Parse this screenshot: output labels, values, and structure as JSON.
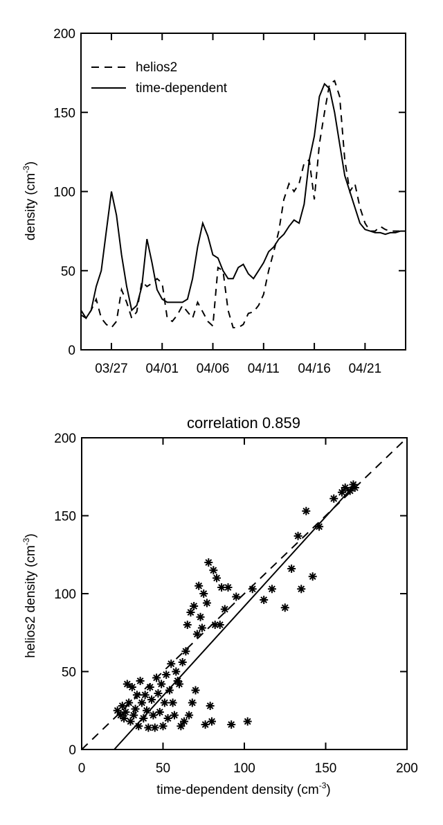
{
  "chart_data": [
    {
      "type": "line",
      "ylabel_main": "density (cm",
      "ylabel_sup": "-3",
      "ylabel_close": ")",
      "ylim": [
        0,
        200
      ],
      "yticks": [
        0,
        50,
        100,
        150,
        200
      ],
      "xlim": [
        0,
        32
      ],
      "xticks": [
        {
          "x": 3,
          "label": "03/27"
        },
        {
          "x": 8,
          "label": "04/01"
        },
        {
          "x": 13,
          "label": "04/06"
        },
        {
          "x": 18,
          "label": "04/11"
        },
        {
          "x": 23,
          "label": "04/16"
        },
        {
          "x": 28,
          "label": "04/21"
        }
      ],
      "legend_position": "top-left",
      "series": [
        {
          "name": "helios2",
          "style": "dashed",
          "x": [
            0,
            0.5,
            1,
            1.5,
            2,
            2.5,
            3,
            3.5,
            4,
            4.5,
            5,
            5.5,
            6,
            6.5,
            7,
            7.5,
            8,
            8.5,
            9,
            9.5,
            10,
            10.5,
            11,
            11.5,
            12,
            12.5,
            13,
            13.5,
            14,
            14.5,
            15,
            15.5,
            16,
            16.5,
            17,
            17.5,
            18,
            18.5,
            19,
            19.5,
            20,
            20.5,
            21,
            21.5,
            22,
            22.5,
            23,
            23.5,
            24,
            24.5,
            25,
            25.5,
            26,
            26.5,
            27,
            27.5,
            28,
            28.5,
            29,
            29.5,
            30,
            30.5,
            31,
            31.5,
            32
          ],
          "y": [
            22,
            20,
            25,
            32,
            20,
            16,
            14,
            18,
            38,
            30,
            20,
            24,
            43,
            40,
            42,
            45,
            42,
            20,
            18,
            22,
            28,
            24,
            20,
            30,
            24,
            18,
            15,
            52,
            50,
            25,
            14,
            14,
            16,
            23,
            24,
            28,
            35,
            50,
            62,
            75,
            95,
            105,
            100,
            105,
            118,
            120,
            95,
            130,
            150,
            168,
            170,
            160,
            120,
            100,
            105,
            90,
            80,
            75,
            75,
            78,
            76,
            75,
            75,
            75,
            75
          ]
        },
        {
          "name": "time-dependent",
          "style": "solid",
          "x": [
            0,
            0.5,
            1,
            1.5,
            2,
            2.5,
            3,
            3.5,
            4,
            4.5,
            5,
            5.5,
            6,
            6.5,
            7,
            7.5,
            8,
            8.5,
            9,
            9.5,
            10,
            10.5,
            11,
            11.5,
            12,
            12.5,
            13,
            13.5,
            14,
            14.5,
            15,
            15.5,
            16,
            16.5,
            17,
            17.5,
            18,
            18.5,
            19,
            19.5,
            20,
            20.5,
            21,
            21.5,
            22,
            22.5,
            23,
            23.5,
            24,
            24.5,
            25,
            25.5,
            26,
            26.5,
            27,
            27.5,
            28,
            28.5,
            29,
            29.5,
            30,
            30.5,
            31,
            31.5,
            32
          ],
          "y": [
            25,
            20,
            25,
            40,
            50,
            75,
            100,
            85,
            60,
            40,
            25,
            28,
            40,
            70,
            55,
            38,
            32,
            30,
            30,
            30,
            30,
            32,
            45,
            65,
            80,
            72,
            60,
            58,
            50,
            45,
            45,
            52,
            54,
            48,
            45,
            50,
            55,
            62,
            65,
            70,
            73,
            78,
            82,
            80,
            92,
            120,
            135,
            160,
            168,
            165,
            150,
            130,
            110,
            100,
            90,
            80,
            76,
            75,
            74,
            74,
            73,
            74,
            74,
            75,
            75
          ]
        }
      ]
    },
    {
      "type": "scatter",
      "title": "correlation 0.859",
      "xlabel_main": "time-dependent   density (cm",
      "xlabel_sup": "-3",
      "xlabel_close": ")",
      "ylabel_main": "helios2 density (cm",
      "ylabel_sup": "-3",
      "ylabel_close": ")",
      "xlim": [
        0,
        200
      ],
      "ylim": [
        0,
        200
      ],
      "xticks": [
        0,
        50,
        100,
        150,
        200
      ],
      "yticks": [
        0,
        50,
        100,
        150,
        200
      ],
      "identity_line": {
        "style": "dashed",
        "from": [
          0,
          0
        ],
        "to": [
          200,
          200
        ]
      },
      "fit_line": {
        "style": "solid",
        "from": [
          20,
          0
        ],
        "to": [
          168,
          170
        ]
      },
      "points": [
        [
          22,
          25
        ],
        [
          24,
          22
        ],
        [
          25,
          28
        ],
        [
          26,
          20
        ],
        [
          27,
          24
        ],
        [
          28,
          42
        ],
        [
          29,
          30
        ],
        [
          30,
          18
        ],
        [
          31,
          40
        ],
        [
          32,
          22
        ],
        [
          33,
          26
        ],
        [
          34,
          35
        ],
        [
          35,
          15
        ],
        [
          36,
          44
        ],
        [
          37,
          30
        ],
        [
          38,
          20
        ],
        [
          39,
          35
        ],
        [
          40,
          25
        ],
        [
          41,
          14
        ],
        [
          42,
          40
        ],
        [
          43,
          32
        ],
        [
          44,
          22
        ],
        [
          45,
          14
        ],
        [
          46,
          46
        ],
        [
          47,
          36
        ],
        [
          48,
          24
        ],
        [
          49,
          42
        ],
        [
          50,
          15
        ],
        [
          51,
          30
        ],
        [
          52,
          48
        ],
        [
          53,
          20
        ],
        [
          54,
          38
        ],
        [
          55,
          55
        ],
        [
          56,
          30
        ],
        [
          57,
          22
        ],
        [
          58,
          50
        ],
        [
          59,
          44
        ],
        [
          60,
          42
        ],
        [
          61,
          15
        ],
        [
          62,
          56
        ],
        [
          63,
          18
        ],
        [
          64,
          63
        ],
        [
          65,
          80
        ],
        [
          66,
          22
        ],
        [
          67,
          88
        ],
        [
          68,
          30
        ],
        [
          69,
          92
        ],
        [
          70,
          38
        ],
        [
          71,
          74
        ],
        [
          72,
          105
        ],
        [
          73,
          85
        ],
        [
          74,
          78
        ],
        [
          75,
          100
        ],
        [
          76,
          16
        ],
        [
          77,
          94
        ],
        [
          78,
          120
        ],
        [
          79,
          28
        ],
        [
          80,
          18
        ],
        [
          81,
          115
        ],
        [
          82,
          80
        ],
        [
          83,
          110
        ],
        [
          85,
          80
        ],
        [
          86,
          104
        ],
        [
          88,
          90
        ],
        [
          90,
          104
        ],
        [
          92,
          16
        ],
        [
          95,
          98
        ],
        [
          102,
          18
        ],
        [
          105,
          103
        ],
        [
          112,
          96
        ],
        [
          117,
          103
        ],
        [
          125,
          91
        ],
        [
          129,
          116
        ],
        [
          133,
          137
        ],
        [
          135,
          103
        ],
        [
          138,
          153
        ],
        [
          142,
          111
        ],
        [
          146,
          143
        ],
        [
          155,
          161
        ],
        [
          160,
          165
        ],
        [
          162,
          168
        ],
        [
          165,
          166
        ],
        [
          167,
          170
        ],
        [
          168,
          168
        ]
      ]
    }
  ]
}
